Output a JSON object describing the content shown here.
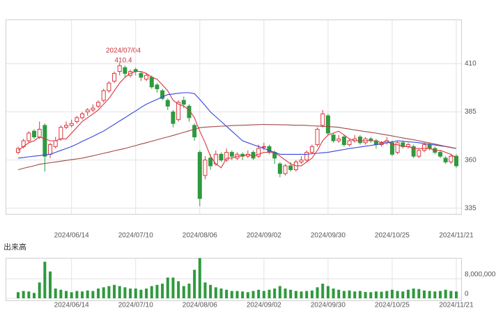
{
  "chart_data": {
    "type": "candlestick",
    "annotation": {
      "label": "2024/07/04",
      "value": 410.4
    },
    "categories": [
      null,
      null,
      null,
      null,
      null,
      null,
      null,
      null,
      null,
      null,
      "2024/06/14",
      null,
      null,
      null,
      null,
      null,
      null,
      null,
      null,
      null,
      null,
      null,
      "2024/07/10",
      null,
      null,
      null,
      null,
      null,
      null,
      null,
      null,
      null,
      null,
      null,
      "2024/08/06",
      null,
      null,
      null,
      null,
      null,
      null,
      null,
      null,
      null,
      null,
      null,
      "2024/09/02",
      null,
      null,
      null,
      null,
      null,
      null,
      null,
      null,
      null,
      null,
      null,
      "2024/09/30",
      null,
      null,
      null,
      null,
      null,
      null,
      null,
      null,
      null,
      null,
      null,
      "2024/10/25",
      null,
      null,
      null,
      null,
      null,
      null,
      null,
      null,
      null,
      null,
      null,
      "2024/11/21"
    ],
    "open": [
      364,
      367,
      370,
      375,
      372,
      378,
      363,
      367,
      371,
      377,
      378,
      380,
      382,
      385,
      386,
      388,
      391,
      396,
      401,
      406,
      408,
      404,
      407,
      405,
      402,
      403,
      399,
      396,
      391,
      385,
      381,
      391,
      388,
      378,
      364,
      352,
      361,
      358,
      363,
      360,
      364,
      361,
      363,
      362,
      364,
      362,
      367,
      367,
      364,
      358,
      353,
      357,
      355,
      359,
      360,
      364,
      368,
      378,
      383,
      373,
      370,
      372,
      368,
      370,
      372,
      369,
      371,
      370,
      368,
      369,
      369,
      364,
      369,
      367,
      367,
      362,
      365,
      368,
      366,
      364,
      361,
      359,
      362
    ],
    "high": [
      367,
      371,
      375,
      376,
      380,
      379,
      369,
      372,
      378,
      380,
      381,
      383,
      385,
      387,
      389,
      391,
      397,
      401,
      406,
      410.4,
      409,
      407,
      408,
      406,
      405,
      404,
      400,
      397,
      392,
      386,
      391,
      393,
      389,
      379,
      365,
      362,
      363,
      365,
      364,
      366,
      365,
      364,
      364,
      365,
      365,
      368,
      369,
      368,
      365,
      359,
      358,
      359,
      360,
      362,
      365,
      368,
      377,
      386,
      384,
      374,
      373,
      373,
      371,
      373,
      373,
      372,
      372,
      371,
      370,
      372,
      370,
      370,
      370,
      369,
      368,
      366,
      369,
      369,
      367,
      365,
      362,
      363,
      363
    ],
    "low": [
      363,
      366,
      369,
      371,
      371,
      354,
      361,
      366,
      370,
      376,
      377,
      379,
      381,
      383,
      385,
      387,
      390,
      395,
      400,
      404,
      403,
      403,
      404,
      401,
      401,
      397,
      395,
      391,
      386,
      377,
      380,
      387,
      380,
      370,
      336,
      350,
      355,
      357,
      359,
      359,
      360,
      360,
      360,
      361,
      360,
      361,
      365,
      363,
      358,
      351,
      352,
      354,
      354,
      358,
      359,
      363,
      367,
      377,
      373,
      369,
      369,
      367,
      367,
      369,
      368,
      368,
      369,
      366,
      367,
      368,
      362,
      363,
      366,
      366,
      361,
      361,
      364,
      365,
      363,
      361,
      358,
      358,
      356
    ],
    "close": [
      366,
      370,
      374,
      372,
      376,
      362,
      368,
      370,
      377,
      378,
      379,
      382,
      384,
      386,
      387,
      390,
      396,
      400,
      405,
      409,
      405,
      406,
      406,
      403,
      404,
      398,
      397,
      392,
      388,
      379,
      390,
      389,
      382,
      372,
      340,
      360,
      357,
      363,
      360,
      364,
      362,
      363,
      362,
      363,
      361,
      366,
      367,
      364,
      361,
      353,
      357,
      355,
      359,
      360,
      364,
      367,
      376,
      384,
      374,
      370,
      371,
      368,
      370,
      371,
      369,
      371,
      370,
      368,
      369,
      370,
      363,
      369,
      367,
      368,
      362,
      365,
      368,
      366,
      364,
      362,
      359,
      362,
      357
    ],
    "up_color": "#d9363e",
    "down_color": "#2e9a3e",
    "moving_averages": [
      {
        "color": "#d9363e",
        "values": [
          365,
          367,
          369,
          370,
          372,
          371,
          370,
          370,
          371,
          371,
          374,
          377,
          380,
          382,
          384,
          386,
          389,
          392,
          396,
          400,
          403,
          405,
          406,
          406,
          405,
          403,
          402,
          399,
          396,
          391,
          389,
          388,
          386,
          382,
          375,
          369,
          362,
          358,
          356,
          361,
          361,
          362,
          362,
          363,
          362,
          363,
          364,
          364,
          364,
          362,
          360,
          358,
          357,
          357,
          359,
          361,
          365,
          370,
          373,
          374,
          375,
          373,
          371,
          370,
          370,
          370,
          370,
          370,
          369,
          370,
          368,
          368,
          367,
          367,
          366,
          366,
          366,
          366,
          365,
          365,
          364,
          363,
          361
        ]
      },
      {
        "color": "#3344dd",
        "values": [
          361,
          361.3,
          361.7,
          362,
          362.3,
          362.7,
          363,
          364,
          365,
          366,
          367,
          368.3,
          369.7,
          371,
          372.3,
          373.7,
          375,
          376.8,
          378.5,
          380.3,
          382,
          383.8,
          385.5,
          387.3,
          389,
          390.3,
          391.5,
          392.8,
          394,
          394.3,
          394.7,
          395,
          395,
          394.5,
          391.5,
          388.3,
          385,
          382.5,
          380,
          377.5,
          375,
          372.5,
          370,
          369,
          368,
          367,
          366,
          365,
          364,
          363,
          363,
          363,
          363,
          363,
          363,
          363.3,
          363.5,
          363.8,
          364,
          364.5,
          365,
          365.5,
          366,
          366.4,
          366.8,
          367.2,
          367.6,
          368,
          368.5,
          369,
          369.5,
          370,
          369.8,
          369.5,
          369.3,
          369,
          368.6,
          368.2,
          367.8,
          367.4,
          367,
          366.5,
          366
        ]
      },
      {
        "color": "#a04848",
        "values": [
          355,
          355.7,
          356.4,
          357,
          357.8,
          358.2,
          358.6,
          359,
          359.4,
          359.8,
          360.2,
          360.6,
          361,
          361.6,
          362.2,
          362.9,
          363.5,
          364.1,
          364.8,
          365.4,
          366,
          366.8,
          367.5,
          368.3,
          369,
          369.8,
          370.5,
          371.3,
          372,
          372.8,
          373.6,
          374.4,
          375.2,
          376,
          376.8,
          377.1,
          377.3,
          377.4,
          377.6,
          377.7,
          377.9,
          378,
          378.1,
          378.2,
          378.3,
          378.4,
          378.5,
          378.4,
          378.4,
          378.3,
          378.3,
          378.2,
          378.1,
          378.1,
          378,
          377.8,
          377.7,
          377.5,
          377.4,
          377.2,
          377,
          376.5,
          376.1,
          375.6,
          375.2,
          374.8,
          374.4,
          374,
          373.5,
          373,
          372.5,
          372,
          371.5,
          371,
          370.5,
          370,
          369.4,
          368.9,
          368.3,
          367.7,
          367.1,
          366.6,
          366
        ]
      }
    ],
    "ylim": [
      332,
      433
    ],
    "yticks": [
      335,
      360,
      385,
      410
    ],
    "grid": true,
    "volume": {
      "label": "出来高",
      "color": "#2e9a3e",
      "values": [
        2500000,
        3000000,
        2800000,
        2200000,
        6500000,
        15000000,
        11000000,
        4000000,
        3500000,
        3000000,
        2500000,
        3000000,
        2800000,
        3200000,
        3000000,
        4000000,
        4500000,
        5000000,
        5500000,
        5000000,
        4500000,
        4000000,
        4000000,
        3500000,
        4000000,
        5000000,
        5500000,
        6000000,
        8500000,
        8500000,
        7000000,
        5000000,
        6000000,
        11700000,
        16500000,
        6500000,
        5500000,
        4500000,
        4000000,
        3500000,
        3000000,
        3000000,
        2800000,
        2500000,
        3000000,
        3500000,
        3000000,
        3500000,
        4000000,
        5000000,
        4000000,
        3500000,
        3000000,
        2800000,
        3000000,
        3200000,
        4500000,
        6000000,
        5000000,
        4000000,
        3500000,
        3000000,
        3200000,
        2800000,
        3000000,
        2600000,
        2500000,
        2800000,
        2700000,
        3000000,
        3500000,
        3000000,
        2800000,
        3500000,
        4000000,
        3800000,
        3200000,
        3000000,
        2800000,
        3000000,
        3500000,
        3000000,
        2800000
      ],
      "ylim": [
        0,
        16600000
      ],
      "yticks": [
        0,
        {
          "value": 8000000,
          "label": "8,000,000"
        }
      ]
    }
  }
}
